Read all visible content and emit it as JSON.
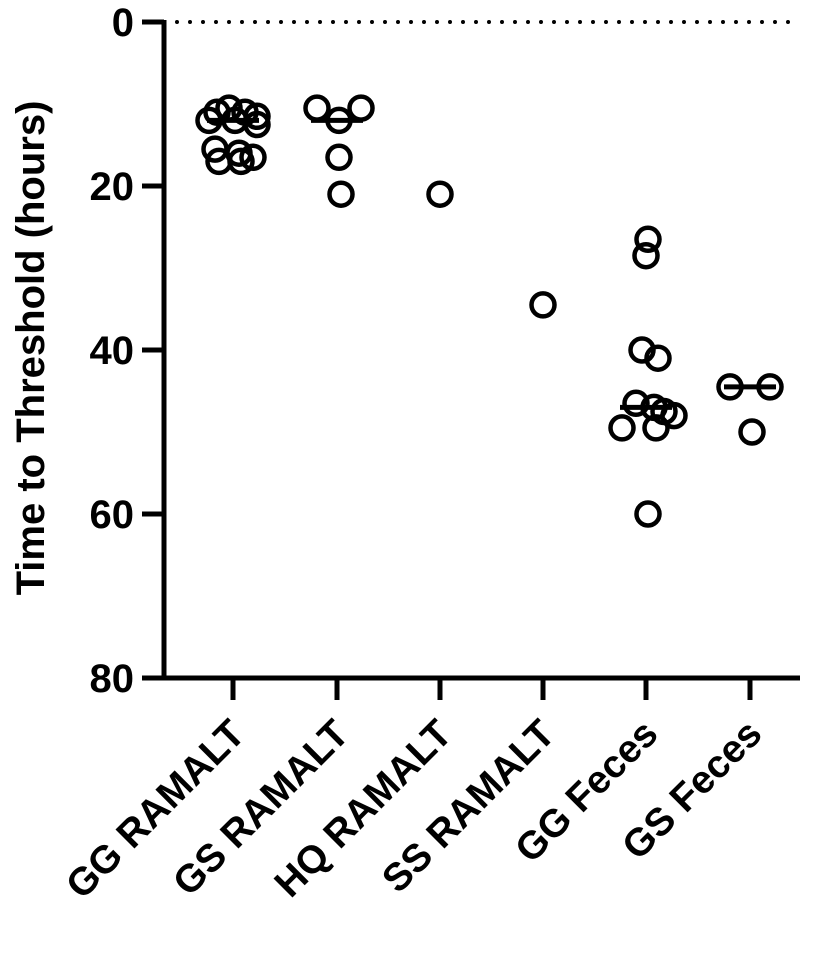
{
  "chart_data": {
    "type": "scatter",
    "title": "",
    "xlabel": "",
    "ylabel": "Time to Threshold (hours)",
    "ylim": [
      0,
      80
    ],
    "y_inverted": true,
    "y_ticks": [
      "0",
      "20",
      "40",
      "60",
      "80"
    ],
    "y_tick_values": [
      0,
      20,
      40,
      60,
      80
    ],
    "categories": [
      "GG RAMALT",
      "GS RAMALT",
      "HQ RAMALT",
      "SS RAMALT",
      "GG Feces",
      "GS Feces"
    ],
    "reference_line": {
      "y": 0,
      "style": "dotted"
    },
    "marker": "open-circle",
    "series": [
      {
        "values": [
          {
            "category": "GG RAMALT",
            "points": [
              10.5,
              11,
              11,
              11.5,
              12,
              12,
              12.5,
              15.5,
              16,
              16.5,
              17,
              17
            ],
            "median": 12
          },
          {
            "category": "GS RAMALT",
            "points": [
              10.5,
              10.5,
              12,
              16.5,
              21
            ],
            "median": 12
          },
          {
            "category": "HQ RAMALT",
            "points": [
              21
            ],
            "median": null
          },
          {
            "category": "SS RAMALT",
            "points": [
              34.5
            ],
            "median": null
          },
          {
            "category": "GG Feces",
            "points": [
              26.5,
              28.5,
              40,
              41,
              46.5,
              47,
              47.5,
              48,
              49.5,
              49.5,
              60
            ],
            "median": 47
          },
          {
            "category": "GS Feces",
            "points": [
              44.5,
              44.5,
              50
            ],
            "median": 44.5
          }
        ]
      }
    ]
  }
}
